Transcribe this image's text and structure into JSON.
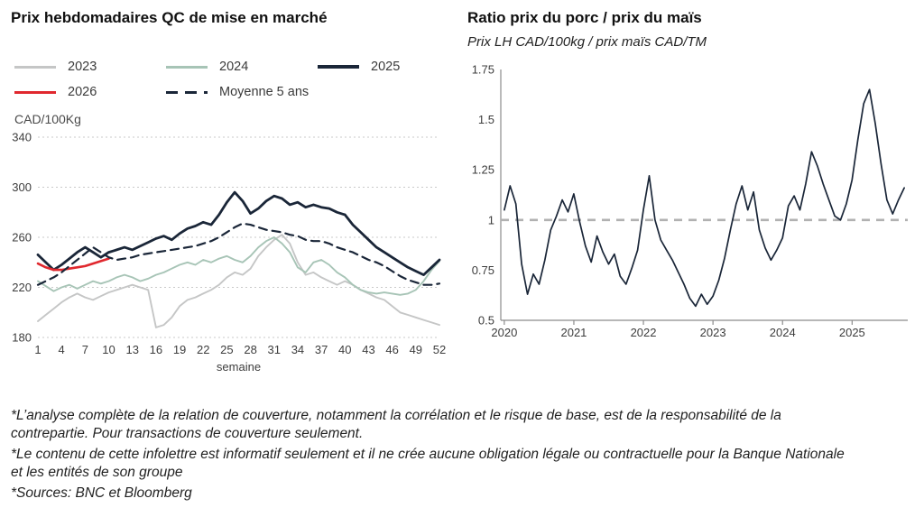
{
  "left_chart": {
    "title": "Prix hebdomadaires QC de mise en marché",
    "unit_label": "CAD/100Kg",
    "x_label": "semaine",
    "legend": [
      {
        "label": "2023",
        "color": "#c5c6c6"
      },
      {
        "label": "2024",
        "color": "#a7c4b6"
      },
      {
        "label": "2025",
        "color": "#1a2638",
        "thick": true
      },
      {
        "label": "2026",
        "color": "#e0282e"
      },
      {
        "label": "Moyenne 5 ans",
        "color": "#1a2638",
        "dash": true
      }
    ]
  },
  "right_chart": {
    "title": "Ratio prix du porc / prix du maïs",
    "subtitle": "Prix LH CAD/100kg / prix maïs CAD/TM"
  },
  "footnotes": [
    "*L’analyse complète de la relation de couverture, notamment la corrélation et le risque de base, est de la responsabilité de la contrepartie. Pour transactions de couverture seulement.",
    "*Le contenu de cette infolettre est informatif seulement et il ne crée aucune obligation légale ou contractuelle pour la Banque Nationale et les entités de son groupe",
    "*Sources: BNC et Bloomberg"
  ],
  "colors": {
    "navy": "#1a2638",
    "sage": "#a7c4b6",
    "gray": "#c5c6c6",
    "red": "#e0282e",
    "grid": "#c9c9c9",
    "reference": "#b1b1b1"
  },
  "chart_data": [
    {
      "type": "line",
      "title": "Prix hebdomadaires QC de mise en marché",
      "xlabel": "semaine",
      "ylabel": "CAD/100Kg",
      "xlim": [
        1,
        52
      ],
      "ylim": [
        180,
        340
      ],
      "yticks": [
        180,
        220,
        260,
        300,
        340
      ],
      "xticks": [
        1,
        4,
        7,
        10,
        13,
        16,
        19,
        22,
        25,
        28,
        31,
        34,
        37,
        40,
        43,
        46,
        49,
        52
      ],
      "x_start": 1,
      "x_step": 1,
      "grid": true,
      "legend_position": "top",
      "series": [
        {
          "name": "2023",
          "color": "#c5c6c6",
          "width": 1.9,
          "values": [
            193,
            198,
            203,
            208,
            212,
            215,
            212,
            210,
            213,
            216,
            218,
            220,
            222,
            220,
            218,
            188,
            190,
            196,
            205,
            210,
            212,
            215,
            218,
            222,
            228,
            232,
            230,
            235,
            245,
            252,
            258,
            262,
            255,
            240,
            230,
            232,
            228,
            225,
            222,
            225,
            222,
            218,
            215,
            212,
            210,
            205,
            200,
            198,
            196,
            194,
            192,
            190
          ]
        },
        {
          "name": "2024",
          "color": "#a7c4b6",
          "width": 1.9,
          "values": [
            225,
            221,
            217,
            220,
            222,
            219,
            222,
            225,
            223,
            225,
            228,
            230,
            228,
            225,
            227,
            230,
            232,
            235,
            238,
            240,
            238,
            242,
            240,
            243,
            245,
            242,
            240,
            245,
            252,
            257,
            260,
            255,
            248,
            236,
            232,
            240,
            242,
            238,
            232,
            228,
            222,
            218,
            216,
            215,
            216,
            215,
            214,
            215,
            218,
            225,
            234,
            241
          ]
        },
        {
          "name": "2025",
          "color": "#1a2638",
          "width": 2.8,
          "values": [
            246,
            240,
            234,
            238,
            243,
            248,
            252,
            248,
            244,
            248,
            250,
            252,
            250,
            253,
            256,
            259,
            261,
            258,
            263,
            267,
            269,
            272,
            270,
            278,
            288,
            296,
            289,
            279,
            283,
            289,
            293,
            291,
            286,
            288,
            284,
            286,
            284,
            283,
            280,
            278,
            270,
            264,
            258,
            252,
            248,
            244,
            240,
            236,
            233,
            230,
            236,
            242
          ]
        },
        {
          "name": "2026",
          "color": "#e0282e",
          "width": 2.6,
          "values": [
            239,
            236,
            234,
            234,
            235,
            236,
            237,
            239,
            241,
            243
          ]
        },
        {
          "name": "Moyenne 5 ans",
          "color": "#1a2638",
          "width": 2.2,
          "dash": "9 6",
          "values": [
            222,
            225,
            228,
            232,
            237,
            242,
            247,
            252,
            248,
            244,
            242,
            243,
            244,
            246,
            247,
            248,
            249,
            250,
            251,
            252,
            253,
            255,
            257,
            260,
            264,
            268,
            271,
            270,
            268,
            266,
            265,
            264,
            262,
            261,
            258,
            257,
            257,
            255,
            252,
            250,
            248,
            245,
            242,
            240,
            237,
            233,
            229,
            226,
            224,
            222,
            222,
            223
          ]
        }
      ]
    },
    {
      "type": "line",
      "title": "Ratio prix du porc / prix du maïs",
      "subtitle": "Prix LH CAD/100kg / prix maïs CAD/TM",
      "xlim": [
        2019.95,
        2025.8
      ],
      "ylim": [
        0.5,
        1.75
      ],
      "yticks": [
        0.5,
        0.75,
        1,
        1.25,
        1.5,
        1.75
      ],
      "xticks": [
        2020,
        2021,
        2022,
        2023,
        2024,
        2025
      ],
      "axes": true,
      "reference_line": {
        "y": 1,
        "color": "#b1b1b1",
        "dash": "9 7",
        "width": 2.6
      },
      "series": [
        {
          "name": "ratio porc/maïs",
          "color": "#1a2638",
          "width": 1.7,
          "x_start": 2020,
          "x_step": 0.0833333,
          "values": [
            1.05,
            1.17,
            1.08,
            0.78,
            0.63,
            0.73,
            0.68,
            0.8,
            0.95,
            1.02,
            1.1,
            1.04,
            1.13,
            0.99,
            0.87,
            0.79,
            0.92,
            0.84,
            0.78,
            0.83,
            0.72,
            0.68,
            0.76,
            0.85,
            1.05,
            1.22,
            1.0,
            0.9,
            0.85,
            0.8,
            0.74,
            0.68,
            0.61,
            0.57,
            0.63,
            0.58,
            0.62,
            0.7,
            0.81,
            0.95,
            1.08,
            1.17,
            1.05,
            1.14,
            0.95,
            0.86,
            0.8,
            0.85,
            0.91,
            1.07,
            1.12,
            1.05,
            1.18,
            1.34,
            1.27,
            1.18,
            1.1,
            1.02,
            1.0,
            1.08,
            1.2,
            1.4,
            1.58,
            1.65,
            1.48,
            1.28,
            1.1,
            1.03,
            1.1,
            1.16
          ]
        }
      ]
    }
  ]
}
